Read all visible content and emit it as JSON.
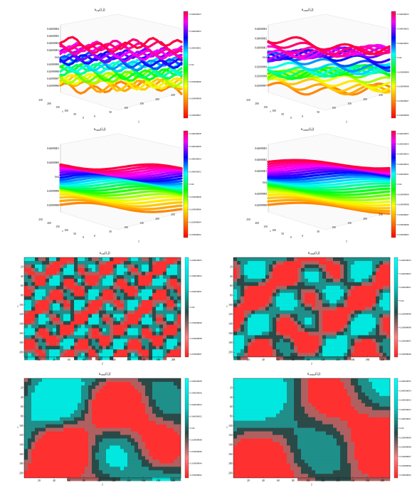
{
  "figure": {
    "panels": [
      {
        "id": "surf-100",
        "kind": "surface",
        "title": "u",
        "title_sub": "100",
        "title_arg": "(i,j)",
        "z_ticks": [
          "0.64000004",
          "0.64000003",
          "0.64000002",
          "0.64000001",
          "0.64",
          "0.63999999",
          "0.63999998",
          "0.63999997",
          "0.63999996"
        ],
        "cbar_ticks": [
          "0.64000003",
          "0.64000002",
          "0.64000001",
          "0.64",
          "0.63999999",
          "0.63999998",
          "0.63999997"
        ],
        "i_ticks": [
          "250",
          "200",
          "150",
          "100",
          "50",
          "0"
        ],
        "j_ticks": [
          "0",
          "50",
          "100",
          "150",
          "200",
          "250"
        ],
        "i_label": "i",
        "j_label": "j"
      },
      {
        "id": "surf-1000",
        "kind": "surface",
        "title": "u",
        "title_sub": "1000",
        "title_arg": "(i,j)",
        "z_ticks": [
          "0.64000003",
          "0.64000002",
          "0.64000001",
          "0.64",
          "0.63999999",
          "0.63999998",
          "0.63999997"
        ],
        "cbar_ticks": [
          "0.64000003",
          "0.64000002",
          "0.64000001",
          "0.64",
          "0.63999999",
          "0.63999998",
          "0.63999997",
          "0.63999996"
        ],
        "i_ticks": [
          "250",
          "200",
          "150",
          "100",
          "50",
          "0"
        ],
        "j_ticks": [
          "0",
          "50",
          "100",
          "150",
          "200",
          "250"
        ],
        "i_label": "i",
        "j_label": "j"
      },
      {
        "id": "surf-5000",
        "kind": "surface",
        "title": "u",
        "title_sub": "5000",
        "title_arg": "(i,j)",
        "z_ticks": [
          "0.64000001",
          "0.64000000",
          "0.64",
          "0.63999999",
          "0.63999998"
        ],
        "cbar_ticks": [
          "0.64000008",
          "0.64000006",
          "0.64000004",
          "0.64000002",
          "0.64",
          "0.63999998",
          "0.63999996",
          "0.63999994",
          "0.63999992"
        ],
        "i_ticks": [
          "250",
          "200",
          "150",
          "100",
          "50",
          "0"
        ],
        "j_ticks": [
          "0",
          "50",
          "100",
          "150",
          "200",
          "250"
        ],
        "i_label": "i",
        "j_label": "j"
      },
      {
        "id": "surf-10000",
        "kind": "surface",
        "title": "u",
        "title_sub": "10000",
        "title_arg": "(i,j)",
        "z_ticks": [
          "0.64000003",
          "0.64000002",
          "0.64000001",
          "0.64",
          "0.63999999",
          "0.63999998"
        ],
        "cbar_ticks": [
          "0.64000005",
          "0.64000004",
          "0.64000003",
          "0.64000002",
          "0.64000001",
          "0.64",
          "0.63999999",
          "0.63999998",
          "0.63999997",
          "0.63999996",
          "0.63999995"
        ],
        "i_ticks": [
          "250",
          "200",
          "150",
          "100",
          "50",
          "0"
        ],
        "j_ticks": [
          "0",
          "50",
          "100",
          "150",
          "200",
          "250"
        ],
        "i_label": "i",
        "j_label": "j"
      },
      {
        "id": "map-100",
        "kind": "map",
        "title": "u",
        "title_sub": "100",
        "title_arg": "(i,j)",
        "cbar_ticks": [
          "0.64000003",
          "0.64000002",
          "0.64000001",
          "0.64",
          "0.63999999",
          "0.63999998",
          "0.63999997"
        ],
        "x_ticks": [
          "20",
          "40",
          "60",
          "80",
          "100",
          "120",
          "140",
          "160",
          "180",
          "200"
        ],
        "y_ticks": [
          "20",
          "40",
          "60",
          "80",
          "100",
          "120",
          "140",
          "160",
          "180",
          "200"
        ],
        "x_label": "j",
        "y_label": "i"
      },
      {
        "id": "map-1000",
        "kind": "map",
        "title": "u",
        "title_sub": "1000",
        "title_arg": "(i,j)",
        "cbar_ticks": [
          "0.64000003",
          "0.64000002",
          "0.64000001",
          "0.64",
          "0.63999999",
          "0.63999998",
          "0.63999997",
          "0.63999996"
        ],
        "x_ticks": [
          "20",
          "40",
          "60",
          "80",
          "100",
          "120",
          "140",
          "160",
          "180",
          "200"
        ],
        "y_ticks": [
          "20",
          "40",
          "60",
          "80",
          "100",
          "120",
          "140",
          "160",
          "180",
          "200"
        ],
        "x_label": "j",
        "y_label": "i"
      },
      {
        "id": "map-5000",
        "kind": "map",
        "title": "u",
        "title_sub": "5000",
        "title_arg": "(i,j)",
        "cbar_ticks": [
          "0.64000008",
          "0.64000006",
          "0.64000004",
          "0.64000002",
          "0.64",
          "0.63999998",
          "0.63999996",
          "0.63999994",
          "0.63999992"
        ],
        "x_ticks": [
          "20",
          "40",
          "60",
          "80",
          "100",
          "120",
          "140",
          "160",
          "180",
          "200"
        ],
        "y_ticks": [
          "20",
          "40",
          "60",
          "80",
          "100",
          "120",
          "140",
          "160",
          "180",
          "200"
        ],
        "x_label": "j",
        "y_label": "i"
      },
      {
        "id": "map-10000",
        "kind": "map",
        "title": "u",
        "title_sub": "10000",
        "title_arg": "(i,j)",
        "cbar_ticks": [
          "0.64000005",
          "0.64000004",
          "0.64000003",
          "0.64000002",
          "0.64000001",
          "0.64",
          "0.63999999",
          "0.63999998",
          "0.63999997",
          "0.63999996",
          "0.63999995"
        ],
        "x_ticks": [
          "20",
          "40",
          "60",
          "80",
          "100",
          "120",
          "140",
          "160",
          "180",
          "200"
        ],
        "y_ticks": [
          "20",
          "40",
          "60",
          "80",
          "100",
          "120",
          "140",
          "160",
          "180",
          "200"
        ],
        "x_label": "j",
        "y_label": "i"
      }
    ]
  },
  "chart_data": [
    {
      "type": "surface",
      "title": "u_100(i,j)",
      "xlabel": "j",
      "ylabel": "i",
      "xlim": [
        0,
        250
      ],
      "ylim": [
        0,
        250
      ],
      "zlim": [
        0.63999996,
        0.64000004
      ],
      "colormap": "hsv"
    },
    {
      "type": "surface",
      "title": "u_1000(i,j)",
      "xlabel": "j",
      "ylabel": "i",
      "xlim": [
        0,
        250
      ],
      "ylim": [
        0,
        250
      ],
      "zlim": [
        0.63999997,
        0.64000003
      ],
      "colormap": "hsv"
    },
    {
      "type": "surface",
      "title": "u_5000(i,j)",
      "xlabel": "j",
      "ylabel": "i",
      "xlim": [
        0,
        250
      ],
      "ylim": [
        0,
        250
      ],
      "zlim": [
        0.63999998,
        0.64000001
      ],
      "colormap": "hsv"
    },
    {
      "type": "surface",
      "title": "u_10000(i,j)",
      "xlabel": "j",
      "ylabel": "i",
      "xlim": [
        0,
        250
      ],
      "ylim": [
        0,
        250
      ],
      "zlim": [
        0.63999998,
        0.64000003
      ],
      "colormap": "hsv"
    },
    {
      "type": "heatmap",
      "title": "u_100(i,j)",
      "xlabel": "j",
      "ylabel": "i",
      "xlim": [
        1,
        200
      ],
      "ylim": [
        1,
        200
      ],
      "colormap": "cyan-red"
    },
    {
      "type": "heatmap",
      "title": "u_1000(i,j)",
      "xlabel": "j",
      "ylabel": "i",
      "xlim": [
        1,
        200
      ],
      "ylim": [
        1,
        200
      ],
      "colormap": "cyan-red"
    },
    {
      "type": "heatmap",
      "title": "u_5000(i,j)",
      "xlabel": "j",
      "ylabel": "i",
      "xlim": [
        1,
        200
      ],
      "ylim": [
        1,
        200
      ],
      "colormap": "cyan-red"
    },
    {
      "type": "heatmap",
      "title": "u_10000(i,j)",
      "xlabel": "j",
      "ylabel": "i",
      "xlim": [
        1,
        200
      ],
      "ylim": [
        1,
        200
      ],
      "colormap": "cyan-red"
    }
  ],
  "colors": {
    "hsv": [
      "#ff0000",
      "#ff8000",
      "#ffff00",
      "#00ff00",
      "#00ffff",
      "#0000ff",
      "#ff00ff",
      "#ff0040"
    ],
    "map_low": "#00e8e0",
    "map_mid": "#2a4a48",
    "map_high": "#ff3030"
  }
}
